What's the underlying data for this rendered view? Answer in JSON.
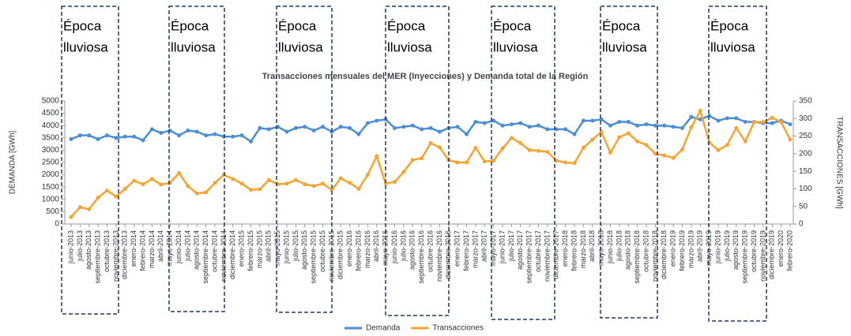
{
  "chart_data": {
    "type": "line",
    "title": "Transacciones mensuales del MER (Inyecciones) y Demanda total de la Región",
    "ylabel": "DEMANDA [GWh]",
    "y2label": "TRANSACCIONES [GWh]",
    "categories": [
      "junio-2013",
      "julio-2013",
      "agosto-2013",
      "septiembre-2013",
      "octubre-2013",
      "noviembre-2013",
      "diciembre-2013",
      "enero-2014",
      "febrero-2014",
      "marzo-2014",
      "abril-2014",
      "mayo-2014",
      "junio-2014",
      "julio-2014",
      "agosto-2014",
      "septiembre-2014",
      "octubre-2014",
      "noviembre-2014",
      "diciembre-2014",
      "enero-2015",
      "febrero-2015",
      "marzo-2015",
      "abril-2015",
      "mayo-2015",
      "junio-2015",
      "julio-2015",
      "agosto-2015",
      "septiembre-2015",
      "octubre-2015",
      "noviembre-2015",
      "diciembre-2015",
      "enero-2016",
      "febrero-2016",
      "marzo-2016",
      "abril-2016",
      "mayo-2016",
      "junio-2016",
      "julio-2016",
      "agosto-2016",
      "septiembre-2016",
      "octubre-2016",
      "noviembre-2016",
      "diciembre-2016",
      "enero-2017",
      "febrero-2017",
      "marzo-2017",
      "abril-2017",
      "mayo-2017",
      "junio-2017",
      "julio-2017",
      "agosto-2017",
      "septiembre-2017",
      "octubre-2017",
      "noviembre-2017",
      "diciembre-2017",
      "enero-2018",
      "febrero-2018",
      "marzo-2018",
      "abril-2018",
      "mayo-2018",
      "junio-2018",
      "julio-2018",
      "agosto-2018",
      "septiembre-2018",
      "octubre-2018",
      "noviembre-2018",
      "diciembre-2018",
      "enero-2019",
      "febrero-2019",
      "marzo-2019",
      "abril-2019",
      "mayo-2019",
      "junio-2019",
      "julio-2019",
      "agosto-2019",
      "septiembre-2019",
      "octubre-2019",
      "noviembre-2019",
      "diciembre-2019",
      "enero-2020",
      "febrero-2020"
    ],
    "series": [
      {
        "name": "Demanda",
        "color": "#4a8fd6",
        "values": [
          3450,
          3600,
          3600,
          3450,
          3600,
          3500,
          3550,
          3550,
          3400,
          3850,
          3700,
          3800,
          3600,
          3800,
          3750,
          3600,
          3650,
          3550,
          3550,
          3600,
          3350,
          3900,
          3850,
          3950,
          3750,
          3900,
          3950,
          3800,
          3950,
          3750,
          3950,
          3900,
          3650,
          4100,
          4200,
          4250,
          3900,
          3950,
          4000,
          3850,
          3900,
          3750,
          3900,
          3950,
          3650,
          4150,
          4100,
          4200,
          4000,
          4050,
          4100,
          3950,
          4000,
          3850,
          3850,
          3850,
          3650,
          4200,
          4200,
          4250,
          4000,
          4150,
          4150,
          4000,
          4050,
          4000,
          4000,
          3950,
          3900,
          4350,
          4250,
          4400,
          4200,
          4300,
          4300,
          4150,
          4150,
          4100,
          4100,
          4200,
          4050
        ]
      },
      {
        "name": "Transacciones",
        "color": "#f5a431",
        "axis": "y2",
        "values": [
          20,
          48,
          42,
          75,
          95,
          78,
          100,
          123,
          113,
          128,
          112,
          117,
          145,
          108,
          87,
          90,
          117,
          140,
          128,
          115,
          97,
          99,
          125,
          113,
          115,
          125,
          113,
          108,
          115,
          97,
          130,
          117,
          100,
          140,
          193,
          115,
          120,
          148,
          182,
          187,
          230,
          218,
          182,
          175,
          175,
          217,
          178,
          180,
          215,
          245,
          230,
          210,
          208,
          205,
          180,
          175,
          173,
          217,
          240,
          262,
          203,
          247,
          258,
          235,
          225,
          200,
          195,
          188,
          212,
          275,
          322,
          232,
          210,
          225,
          273,
          235,
          290,
          290,
          302,
          290,
          240
        ]
      }
    ],
    "ylim": [
      0,
      5000
    ],
    "yticks": [
      0,
      500,
      1000,
      1500,
      2000,
      2500,
      3000,
      3500,
      4000,
      4500,
      5000
    ],
    "y2lim": [
      0,
      350
    ],
    "y2ticks": [
      0,
      50,
      100,
      150,
      200,
      250,
      300,
      350
    ],
    "legend": "bottom",
    "annotations": [
      {
        "lines": [
          "Época",
          "lluviosa"
        ]
      },
      {
        "lines": [
          "Época",
          "lluviosa"
        ]
      },
      {
        "lines": [
          "Época",
          "lluviosa"
        ]
      },
      {
        "lines": [
          "Época",
          "lluviosa"
        ]
      },
      {
        "lines": [
          "Época",
          "lluviosa"
        ]
      },
      {
        "lines": [
          "Época",
          "lluviosa"
        ]
      },
      {
        "lines": [
          "Época",
          "lluviosa"
        ]
      }
    ]
  }
}
